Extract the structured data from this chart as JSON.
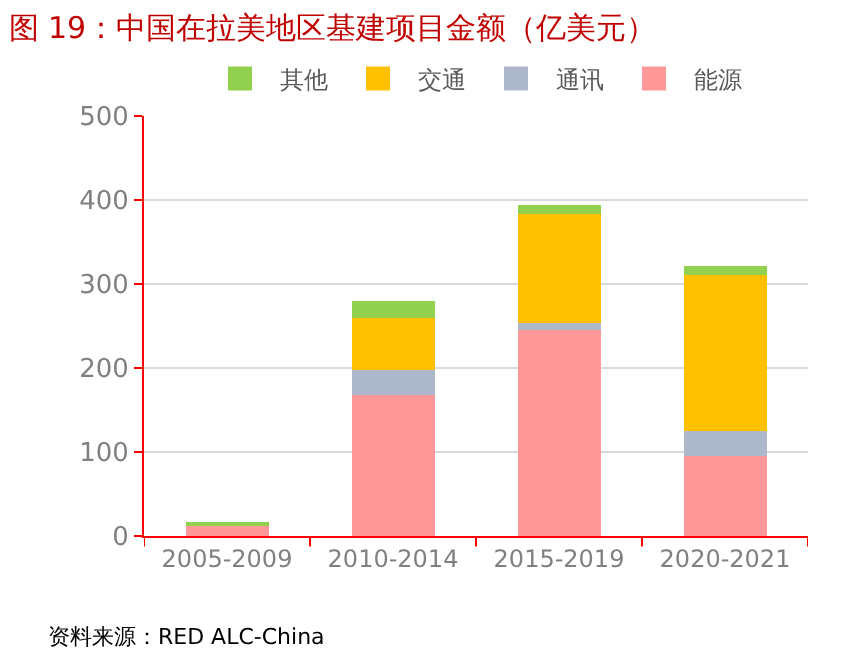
{
  "chart_data": {
    "type": "bar",
    "title": "图 19：中国在拉美地区基建项目金额（亿美元）",
    "categories": [
      "2005-2009",
      "2010-2014",
      "2015-2019",
      "2020-2021"
    ],
    "stacked": true,
    "series": [
      {
        "name": "能源",
        "color": "#ff9999",
        "values": [
          13,
          168,
          245,
          95
        ]
      },
      {
        "name": "通讯",
        "color": "#adb9ca",
        "values": [
          0,
          30,
          9,
          30
        ]
      },
      {
        "name": "交通",
        "color": "#ffc000",
        "values": [
          0,
          62,
          129,
          186
        ]
      },
      {
        "name": "其他",
        "color": "#92d050",
        "values": [
          2,
          20,
          11,
          11
        ]
      }
    ],
    "ylim": [
      0,
      500
    ],
    "yticks": [
      0,
      100,
      200,
      300,
      400,
      500
    ],
    "grid": "y",
    "legend": "top",
    "annotations": [
      "资料来源：RED ALC-China"
    ]
  }
}
